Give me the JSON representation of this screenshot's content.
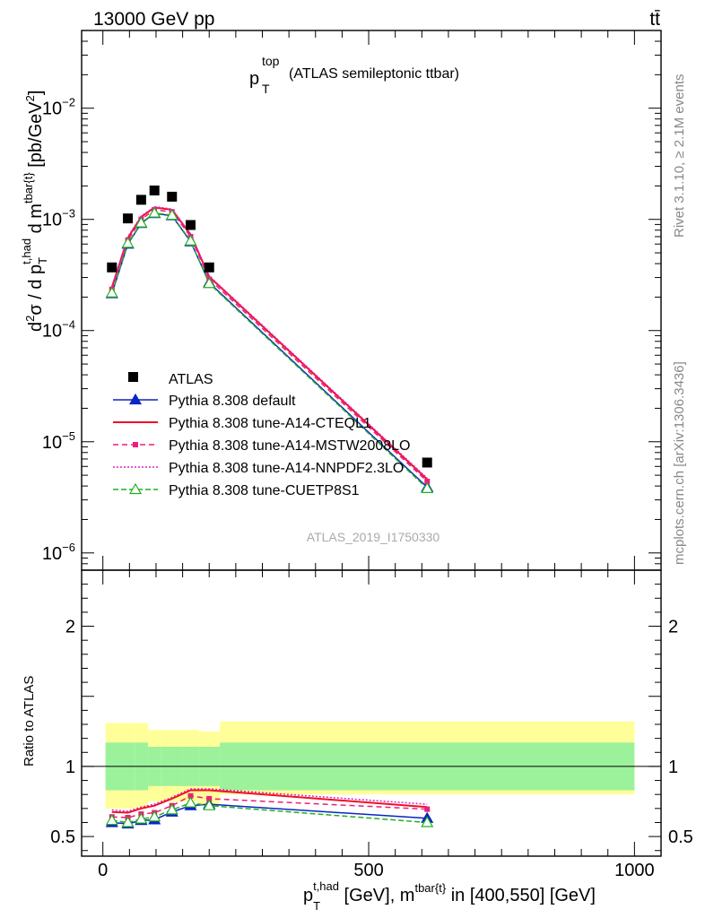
{
  "header": {
    "left": "13000 GeV pp",
    "right": "tt̄"
  },
  "title": {
    "base": "p",
    "sub": "T",
    "sup": "top",
    "rest": "(ATLAS semileptonic ttbar)"
  },
  "side": {
    "rivet": "Rivet 3.1.10, ≥ 2.1M events",
    "mcplots": "mcplots.cern.ch [arXiv:1306.3436]"
  },
  "watermark": "ATLAS_2019_I1750330",
  "axes": {
    "ylabel_main": "d²σ / d p_T^{t,had} d m^{tbar{t}} [pb/GeV²]",
    "ylabel_ratio": "Ratio to ATLAS",
    "xlabel": "p_T^{t,had} [GeV], m^{tbar{t}} in [400,550] [GeV]"
  },
  "ticks": {
    "main_y": [
      {
        "value": 0.01,
        "base": "10",
        "exp": "−2"
      },
      {
        "value": 0.001,
        "base": "10",
        "exp": "−3"
      },
      {
        "value": 0.0001,
        "base": "10",
        "exp": "−4"
      },
      {
        "value": 1e-05,
        "base": "10",
        "exp": "−5"
      },
      {
        "value": 1e-06,
        "base": "10",
        "exp": "−6"
      }
    ],
    "ratio_y": [
      {
        "value": 2,
        "label": "2"
      },
      {
        "value": 1,
        "label": "1"
      },
      {
        "value": 0.5,
        "label": "0.5"
      }
    ],
    "x": [
      {
        "value": 0,
        "label": "0"
      },
      {
        "value": 500,
        "label": "500"
      },
      {
        "value": 1000,
        "label": "1000"
      }
    ]
  },
  "chart_data": {
    "type": "line",
    "x_range": [
      -40,
      1050
    ],
    "y_range_main": [
      7e-07,
      0.05
    ],
    "y_scale_main": "log",
    "y_range_ratio": [
      0.36,
      2.4
    ],
    "legend_position": "middle-left",
    "x": [
      17,
      47,
      72,
      97,
      130,
      165,
      200,
      610
    ],
    "data": {
      "name": "ATLAS",
      "values": [
        0.00037,
        0.00102,
        0.0015,
        0.00182,
        0.0016,
        0.00089,
        0.00037,
        6.5e-06
      ]
    },
    "series": [
      {
        "name": "Pythia 8.308 default",
        "color": "#0b24c4",
        "dash": "",
        "marker": "triangle-filled",
        "values": [
          0.000215,
          0.0006,
          0.00092,
          0.00113,
          0.00108,
          0.00063,
          0.00027,
          3.9e-06
        ],
        "ratio": [
          0.6,
          0.59,
          0.615,
          0.62,
          0.675,
          0.72,
          0.73,
          0.63
        ]
      },
      {
        "name": "Pythia 8.308 tune-A14-CTEQL1",
        "color": "#ee1122",
        "dash": "",
        "marker": "none",
        "values": [
          0.000245,
          0.00068,
          0.00105,
          0.00128,
          0.00122,
          0.00073,
          0.000305,
          4.6e-06
        ],
        "ratio": [
          0.675,
          0.67,
          0.7,
          0.72,
          0.77,
          0.83,
          0.83,
          0.71
        ]
      },
      {
        "name": "Pythia 8.308 tune-A14-MSTW2008LO",
        "color": "#ec1f7a",
        "dash": "6,4",
        "marker": "square-small",
        "values": [
          0.000235,
          0.00065,
          0.001,
          0.00122,
          0.00117,
          0.0007,
          0.00029,
          4.4e-06
        ],
        "ratio": [
          0.64,
          0.635,
          0.66,
          0.67,
          0.72,
          0.79,
          0.77,
          0.695
        ]
      },
      {
        "name": "Pythia 8.308 tune-A14-NNPDF2.3LO",
        "color": "#e020c8",
        "dash": "2,2",
        "marker": "none",
        "values": [
          0.00025,
          0.0007,
          0.00107,
          0.0013,
          0.00124,
          0.00074,
          0.00031,
          4.7e-06
        ],
        "ratio": [
          0.69,
          0.68,
          0.71,
          0.73,
          0.78,
          0.84,
          0.84,
          0.73
        ]
      },
      {
        "name": "Pythia 8.308 tune-CUETP8S1",
        "color": "#21b021",
        "dash": "6,3",
        "marker": "triangle-open",
        "values": [
          0.000218,
          0.00061,
          0.00093,
          0.00114,
          0.00109,
          0.00064,
          0.000265,
          3.8e-06
        ],
        "ratio": [
          0.615,
          0.6,
          0.625,
          0.64,
          0.69,
          0.74,
          0.72,
          0.6
        ]
      }
    ],
    "bands": {
      "bins": [
        5,
        30,
        60,
        85,
        110,
        150,
        180,
        220,
        1000
      ],
      "inner": [
        [
          0.83,
          1.17
        ],
        [
          0.83,
          1.17
        ],
        [
          0.83,
          1.17
        ],
        [
          0.86,
          1.14
        ],
        [
          0.86,
          1.14
        ],
        [
          0.86,
          1.14
        ],
        [
          0.86,
          1.14
        ],
        [
          0.83,
          1.17
        ]
      ],
      "outer": [
        [
          0.7,
          1.31
        ],
        [
          0.7,
          1.31
        ],
        [
          0.7,
          1.31
        ],
        [
          0.75,
          1.26
        ],
        [
          0.75,
          1.26
        ],
        [
          0.75,
          1.26
        ],
        [
          0.72,
          1.25
        ],
        [
          0.8,
          1.32
        ]
      ],
      "inner_color": "#9bf29b",
      "outer_color": "#ffff99"
    }
  }
}
